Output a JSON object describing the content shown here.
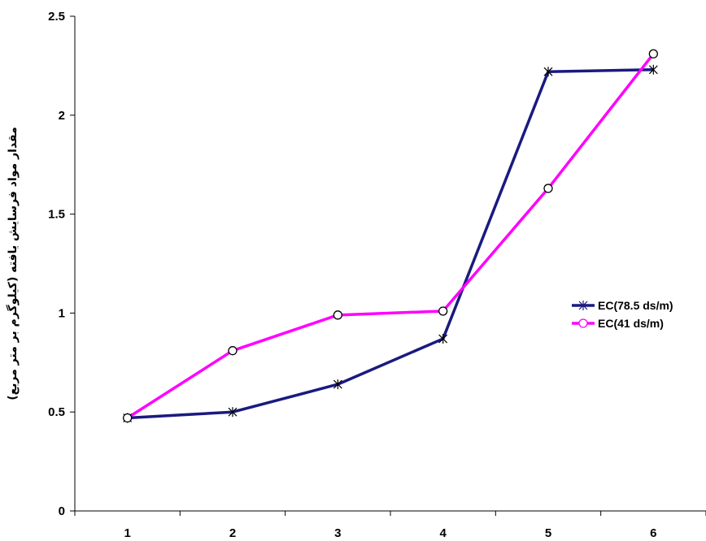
{
  "chart_data": {
    "type": "line",
    "title": "",
    "xlabel": "",
    "ylabel": "مقدار مواد فرسایش یافته (کیلوگرم بر متر مربع)",
    "categories": [
      "1",
      "2",
      "3",
      "4",
      "5",
      "6"
    ],
    "ylim": [
      0,
      2.5
    ],
    "yticks": [
      "0",
      "0.5",
      "1",
      "1.5",
      "2",
      "2.5"
    ],
    "grid": false,
    "legend_position": "right",
    "series": [
      {
        "name": "EC(78.5 ds/m)",
        "color": "#1a1a80",
        "marker": "star",
        "values": [
          0.47,
          0.5,
          0.64,
          0.87,
          2.22,
          2.23
        ]
      },
      {
        "name": "EC(41 ds/m)",
        "color": "#ff00ff",
        "marker": "circle",
        "values": [
          0.47,
          0.81,
          0.99,
          1.01,
          1.63,
          2.31
        ]
      }
    ]
  }
}
